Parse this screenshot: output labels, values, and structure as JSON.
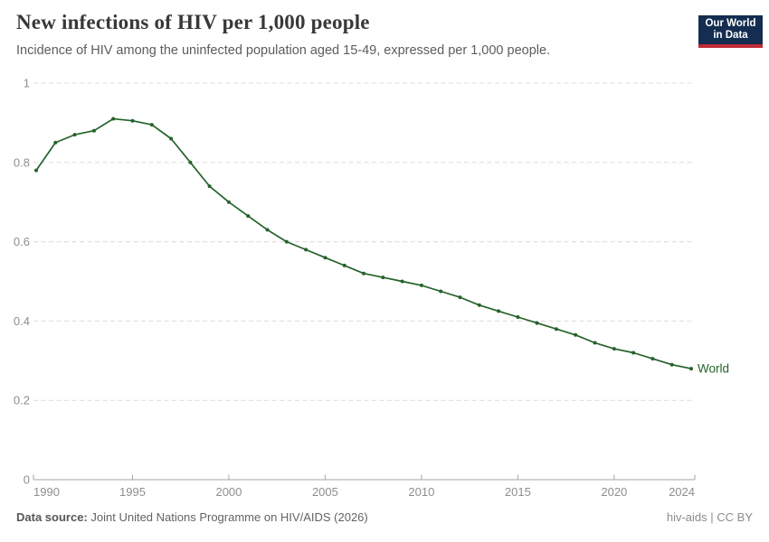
{
  "header": {
    "title": "New infections of HIV per 1,000 people",
    "subtitle": "Incidence of HIV among the uninfected population aged 15-49, expressed per 1,000 people.",
    "logo": {
      "line1": "Our World",
      "line2": "in Data",
      "bg_color": "#142d50",
      "accent_color": "#bf2b36"
    }
  },
  "footer": {
    "source_label": "Data source:",
    "source_text": "Joint United Nations Programme on HIV/AIDS (2026)",
    "license_text": "hiv-aids | CC BY"
  },
  "chart_data": {
    "type": "line",
    "title": "New infections of HIV per 1,000 people",
    "subtitle": "Incidence of HIV among the uninfected population aged 15-49, expressed per 1,000 people.",
    "xlabel": "",
    "ylabel": "",
    "xlim": [
      1990,
      2024
    ],
    "ylim": [
      0,
      1
    ],
    "x_ticks": [
      1990,
      1995,
      2000,
      2005,
      2010,
      2015,
      2020,
      2024
    ],
    "y_ticks": [
      0,
      0.2,
      0.4,
      0.6,
      0.8,
      1
    ],
    "grid": "horizontal-dashed",
    "legend_position": "end-of-line",
    "colors": {
      "grid": "#dcdcdc",
      "axis": "#a6a6a6",
      "tick_label": "#8e8e8e"
    },
    "series": [
      {
        "name": "World",
        "color": "#25622a",
        "x": [
          1990,
          1991,
          1992,
          1993,
          1994,
          1995,
          1996,
          1997,
          1998,
          1999,
          2000,
          2001,
          2002,
          2003,
          2004,
          2005,
          2006,
          2007,
          2008,
          2009,
          2010,
          2011,
          2012,
          2013,
          2014,
          2015,
          2016,
          2017,
          2018,
          2019,
          2020,
          2021,
          2022,
          2023,
          2024
        ],
        "values": [
          0.78,
          0.85,
          0.87,
          0.88,
          0.91,
          0.905,
          0.895,
          0.86,
          0.8,
          0.74,
          0.7,
          0.665,
          0.63,
          0.6,
          0.58,
          0.56,
          0.54,
          0.52,
          0.51,
          0.5,
          0.49,
          0.475,
          0.46,
          0.44,
          0.425,
          0.41,
          0.395,
          0.38,
          0.365,
          0.345,
          0.33,
          0.32,
          0.305,
          0.29,
          0.28
        ]
      }
    ]
  }
}
